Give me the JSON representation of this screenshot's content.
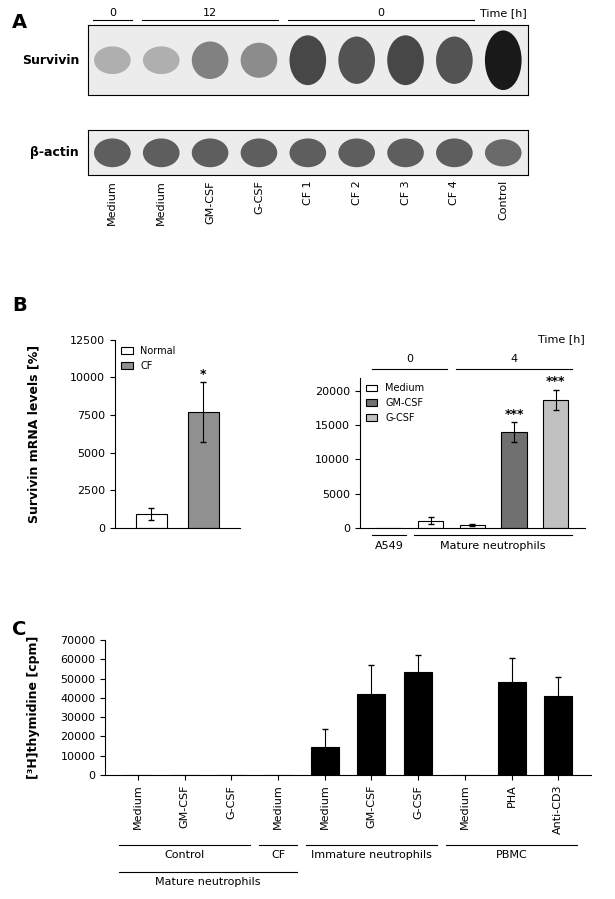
{
  "blot": {
    "panel": "A",
    "time_label": "Time [h]",
    "time_groups": [
      {
        "label": "0",
        "start": 0,
        "end": 0
      },
      {
        "label": "12",
        "start": 1,
        "end": 3
      },
      {
        "label": "0",
        "start": 4,
        "end": 7
      }
    ],
    "lanes": [
      "Medium",
      "Medium",
      "GM-CSF",
      "G-CSF",
      "CF 1",
      "CF 2",
      "CF 3",
      "CF 4",
      "Control"
    ],
    "rows": [
      {
        "name": "Survivin",
        "intensity": [
          0.35,
          0.35,
          0.55,
          0.5,
          0.8,
          0.75,
          0.8,
          0.75,
          1.0
        ]
      },
      {
        "name": "β-actin",
        "intensity": [
          0.7,
          0.7,
          0.7,
          0.7,
          0.7,
          0.7,
          0.7,
          0.7,
          0.65
        ]
      }
    ]
  },
  "chart_data": [
    {
      "type": "bar",
      "panel": "B",
      "y_label": "Survivin mRNA levels [%]",
      "categories": [
        null,
        null
      ],
      "series": [
        {
          "name": "Normal",
          "color": "#ffffff",
          "values": [
            900,
            null
          ],
          "errors": [
            400,
            null
          ]
        },
        {
          "name": "CF",
          "color": "#909090",
          "values": [
            null,
            7700
          ],
          "errors": [
            null,
            2000
          ],
          "significance": "*"
        }
      ],
      "ylim": [
        0,
        12500
      ],
      "yticks": [
        0,
        2500,
        5000,
        7500,
        10000,
        12500
      ],
      "legend": "upper left"
    },
    {
      "type": "bar",
      "categories": [
        null,
        null,
        null,
        null,
        null
      ],
      "series": [
        {
          "name": "Medium",
          "color": "#ffffff",
          "values": [
            20,
            1000,
            400,
            null,
            null
          ],
          "errors": [
            null,
            500,
            150,
            null,
            null
          ]
        },
        {
          "name": "GM-CSF",
          "color": "#707070",
          "values": [
            null,
            null,
            null,
            14000,
            null
          ],
          "errors": [
            null,
            null,
            null,
            1500,
            null
          ],
          "significance": "***"
        },
        {
          "name": "G-CSF",
          "color": "#c0c0c0",
          "values": [
            null,
            null,
            null,
            null,
            18700
          ],
          "errors": [
            null,
            null,
            null,
            null,
            1500
          ],
          "significance": "***"
        }
      ],
      "ylim": [
        0,
        22000
      ],
      "yticks": [
        0,
        5000,
        10000,
        15000,
        20000
      ],
      "legend": "upper left",
      "time_label": "Time [h]",
      "time_groups": [
        {
          "label": "0",
          "start": 0,
          "end": 1
        },
        {
          "label": "4",
          "start": 2,
          "end": 4
        }
      ],
      "groups": [
        [
          {
            "label": "A549",
            "start": 0,
            "end": 0
          },
          {
            "label": "Mature neutrophils",
            "start": 1,
            "end": 4
          }
        ]
      ]
    },
    {
      "type": "bar",
      "panel": "C",
      "y_label": "[³H]thymidine [cpm]",
      "categories": [
        "Medium",
        "GM-CSF",
        "G-CSF",
        "Medium",
        "Medium",
        "GM-CSF",
        "G-CSF",
        "Medium",
        "PHA",
        "Anti-CD3"
      ],
      "values": [
        0,
        0,
        0,
        0,
        14500,
        42000,
        53500,
        0,
        48500,
        41000
      ],
      "errors": [
        null,
        null,
        null,
        null,
        9500,
        15000,
        9000,
        null,
        12000,
        10000
      ],
      "color": "#000000",
      "ylim": [
        0,
        70000
      ],
      "yticks": [
        0,
        10000,
        20000,
        30000,
        40000,
        50000,
        60000,
        70000
      ],
      "groups": [
        [
          {
            "label": "Control",
            "start": 0,
            "end": 2
          },
          {
            "label": "CF",
            "start": 3,
            "end": 3
          },
          {
            "label": "Immature neutrophils",
            "start": 4,
            "end": 6
          },
          {
            "label": "PBMC",
            "start": 7,
            "end": 9
          }
        ],
        [
          {
            "label": "Mature neutrophils",
            "start": 0,
            "end": 3
          }
        ]
      ]
    }
  ]
}
